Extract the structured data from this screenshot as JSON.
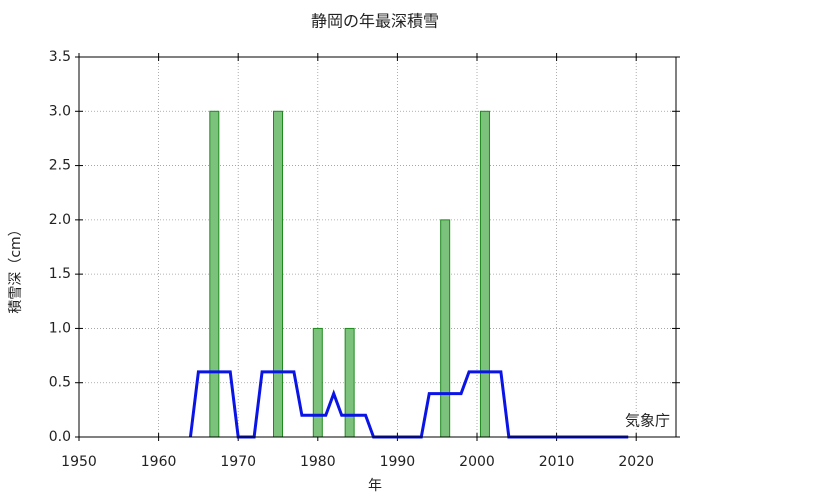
{
  "chart_data": {
    "type": "bar",
    "title": "静岡の年最深積雪",
    "x_label": "年",
    "y_label": "積雪深（cm）",
    "annotation": "気象庁",
    "xlim": [
      1950,
      2025
    ],
    "xticks": [
      1950,
      1960,
      1970,
      1980,
      1990,
      2000,
      2010,
      2020
    ],
    "ylim": [
      0,
      3.5
    ],
    "yticks": [
      {
        "value": 0,
        "label": "0.0"
      },
      {
        "value": 0.5,
        "label": "0.5"
      },
      {
        "value": 1,
        "label": "1.0"
      },
      {
        "value": 1.5,
        "label": "1.5"
      },
      {
        "value": 2,
        "label": "2.0"
      },
      {
        "value": 2.5,
        "label": "2.5"
      },
      {
        "value": 3,
        "label": "3.0"
      },
      {
        "value": 3.5,
        "label": "3.5"
      }
    ],
    "grid": true,
    "series": [
      {
        "type": "bar",
        "color": "#7cc27c",
        "x": [
          1967,
          1975,
          1980,
          1984,
          1996,
          2001
        ],
        "values": [
          3,
          3,
          1,
          1,
          2,
          3
        ]
      },
      {
        "type": "line",
        "color": "#0a14e6",
        "x": [
          1964,
          1965,
          1966,
          1967,
          1968,
          1969,
          1970,
          1971,
          1972,
          1973,
          1974,
          1975,
          1976,
          1977,
          1978,
          1979,
          1980,
          1981,
          1982,
          1983,
          1984,
          1985,
          1986,
          1987,
          1988,
          1989,
          1990,
          1991,
          1992,
          1993,
          1994,
          1995,
          1996,
          1997,
          1998,
          1999,
          2000,
          2001,
          2002,
          2003,
          2004,
          2005,
          2006,
          2007,
          2008,
          2009,
          2010,
          2011,
          2012,
          2013,
          2014,
          2015,
          2016,
          2017,
          2018,
          2019
        ],
        "values": [
          0,
          0.6,
          0.6,
          0.6,
          0.6,
          0.6,
          0,
          0,
          0,
          0.6,
          0.6,
          0.6,
          0.6,
          0.6,
          0.2,
          0.2,
          0.2,
          0.2,
          0.4,
          0.2,
          0.2,
          0.2,
          0.2,
          0,
          0,
          0,
          0,
          0,
          0,
          0,
          0.4,
          0.4,
          0.4,
          0.4,
          0.4,
          0.6,
          0.6,
          0.6,
          0.6,
          0.6,
          0,
          0,
          0,
          0,
          0,
          0,
          0,
          0,
          0,
          0,
          0,
          0,
          0,
          0,
          0,
          0
        ]
      }
    ]
  }
}
